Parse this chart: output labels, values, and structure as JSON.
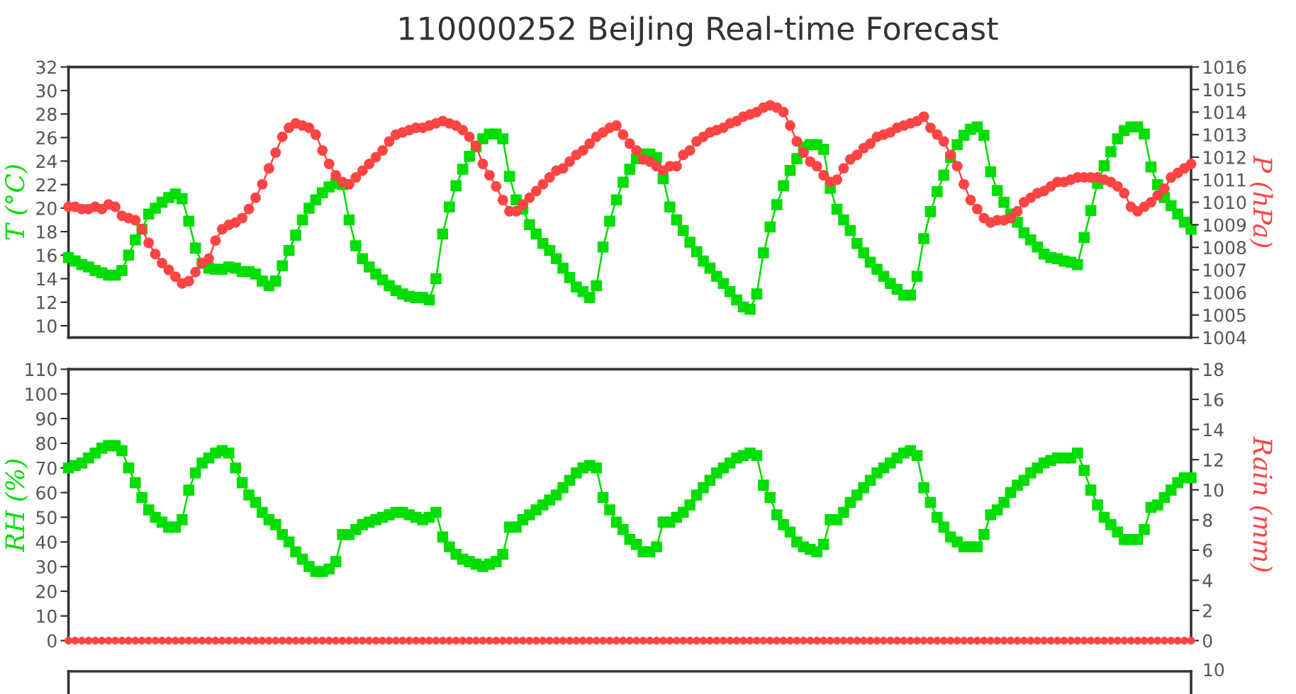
{
  "chart_data": [
    {
      "type": "line",
      "title": "110000252 BeiJing Real-time Forecast",
      "ylabel": "T (°C)",
      "y2label": "P (hPa)",
      "tick_labels": "y",
      "categories": [
        null,
        null,
        null,
        null,
        null,
        null,
        null,
        null,
        null,
        null,
        null,
        null,
        null,
        null,
        null,
        null,
        null,
        null,
        null,
        null,
        null,
        null,
        null,
        null,
        null,
        null,
        null,
        null,
        null,
        null,
        null,
        null,
        null,
        null,
        null,
        null,
        null,
        null,
        null,
        null,
        null,
        null,
        null,
        null,
        null,
        null,
        null,
        null,
        null,
        null,
        null,
        null,
        null,
        null,
        null,
        null,
        null,
        null,
        null,
        null,
        null,
        null,
        null,
        null,
        null,
        null,
        null,
        null,
        null,
        null,
        null,
        null,
        null,
        null,
        null,
        null,
        null,
        null,
        null,
        null,
        null,
        null,
        null,
        null,
        null,
        null,
        null,
        null,
        null,
        null,
        null,
        null,
        null,
        null,
        null,
        null,
        null,
        null,
        null,
        null,
        null,
        null,
        null,
        null,
        null,
        null,
        null,
        null,
        null,
        null,
        null,
        null,
        null,
        null,
        null,
        null,
        null,
        null,
        null,
        null,
        null,
        null,
        null,
        null,
        null,
        null,
        null,
        null,
        null,
        null,
        null,
        null,
        null,
        null,
        null,
        null,
        null,
        null,
        null,
        null,
        null,
        null,
        null,
        null,
        null,
        null,
        null,
        null,
        null,
        null,
        null,
        null,
        null,
        null,
        null,
        null,
        null,
        null,
        null,
        null,
        null,
        null,
        null,
        null,
        null,
        null,
        null,
        null,
        null
      ],
      "ylim": [
        9,
        32
      ],
      "yticks": [
        10,
        12,
        14,
        16,
        18,
        20,
        22,
        24,
        26,
        28,
        30,
        32
      ],
      "y2lim": [
        1004,
        1016
      ],
      "y2ticks": [
        1004,
        1005,
        1006,
        1007,
        1008,
        1009,
        1010,
        1011,
        1012,
        1013,
        1014,
        1015,
        1016
      ],
      "series": [
        {
          "color": "#00dd00",
          "marker": "square",
          "values": [
            15.8,
            15.5,
            15.2,
            15.0,
            14.7,
            14.5,
            14.3,
            14.3,
            14.7,
            16.0,
            17.3,
            18.2,
            19.5,
            20.0,
            20.5,
            20.9,
            21.2,
            20.8,
            18.9,
            16.6,
            15.3,
            14.9,
            14.8,
            14.8,
            15.0,
            14.9,
            14.6,
            14.6,
            14.4,
            13.8,
            13.4,
            13.8,
            15.1,
            16.4,
            17.7,
            19.0,
            20.0,
            20.7,
            21.3,
            21.8,
            22.1,
            22.0,
            19.0,
            16.8,
            15.7,
            15.0,
            14.4,
            13.9,
            13.4,
            13.0,
            12.7,
            12.5,
            12.4,
            12.4,
            12.2,
            14.0,
            17.8,
            20.1,
            21.9,
            23.3,
            24.4,
            25.2,
            25.9,
            26.3,
            26.3,
            25.9,
            22.7,
            20.7,
            19.9,
            18.6,
            17.8,
            17.0,
            16.4,
            15.7,
            14.9,
            14.1,
            13.3,
            12.9,
            12.4,
            13.4,
            16.7,
            18.9,
            20.7,
            22.2,
            23.3,
            24.2,
            24.6,
            24.6,
            24.3,
            22.5,
            20.1,
            19.0,
            18.1,
            17.1,
            16.3,
            15.5,
            14.9,
            14.2,
            13.6,
            12.9,
            12.2,
            11.6,
            11.4,
            12.7,
            16.2,
            18.4,
            20.3,
            21.9,
            23.2,
            24.2,
            25.2,
            25.4,
            25.4,
            25.0,
            21.7,
            19.9,
            19.0,
            18.1,
            17.0,
            16.2,
            15.4,
            14.8,
            14.2,
            13.6,
            13.1,
            12.6,
            12.6,
            14.2,
            17.4,
            19.7,
            21.4,
            22.8,
            24.3,
            25.4,
            26.2,
            26.7,
            26.9,
            26.2,
            23.1,
            21.5,
            20.5,
            19.5,
            18.8,
            17.9,
            17.3,
            16.7,
            16.1,
            15.8,
            15.7,
            15.5,
            15.4,
            15.2,
            17.5,
            19.8,
            22.1,
            23.6,
            24.8,
            25.9,
            26.6,
            26.9,
            26.9,
            26.3,
            23.5,
            22.0,
            20.9,
            20.2,
            19.5,
            18.8,
            18.2
          ]
        },
        {
          "color": "#ff4444",
          "marker": "circle",
          "axis": "y2",
          "values": [
            1009.8,
            1009.8,
            1009.7,
            1009.7,
            1009.8,
            1009.7,
            1009.9,
            1009.8,
            1009.4,
            1009.3,
            1009.2,
            1008.8,
            1008.2,
            1007.7,
            1007.3,
            1007.0,
            1006.7,
            1006.4,
            1006.5,
            1006.9,
            1007.3,
            1007.5,
            1008.3,
            1008.8,
            1009.0,
            1009.1,
            1009.3,
            1009.7,
            1010.2,
            1010.8,
            1011.5,
            1012.2,
            1012.9,
            1013.3,
            1013.5,
            1013.4,
            1013.3,
            1013.0,
            1012.3,
            1011.7,
            1011.2,
            1010.9,
            1010.8,
            1011.1,
            1011.4,
            1011.7,
            1012.0,
            1012.3,
            1012.7,
            1013.0,
            1013.1,
            1013.2,
            1013.3,
            1013.3,
            1013.4,
            1013.5,
            1013.6,
            1013.5,
            1013.4,
            1013.2,
            1012.9,
            1012.5,
            1011.7,
            1011.2,
            1010.7,
            1010.1,
            1009.6,
            1009.6,
            1009.9,
            1010.2,
            1010.5,
            1010.8,
            1011.1,
            1011.4,
            1011.5,
            1011.8,
            1012.1,
            1012.3,
            1012.6,
            1012.9,
            1013.1,
            1013.3,
            1013.4,
            1013.0,
            1012.6,
            1012.3,
            1011.9,
            1011.8,
            1011.6,
            1011.4,
            1011.6,
            1011.6,
            1012.1,
            1012.3,
            1012.7,
            1012.9,
            1013.1,
            1013.2,
            1013.3,
            1013.5,
            1013.6,
            1013.8,
            1013.9,
            1014.0,
            1014.2,
            1014.3,
            1014.2,
            1014.0,
            1013.4,
            1012.7,
            1012.2,
            1011.8,
            1011.6,
            1011.2,
            1010.9,
            1011.0,
            1011.5,
            1011.9,
            1012.1,
            1012.4,
            1012.6,
            1012.9,
            1013.0,
            1013.1,
            1013.3,
            1013.4,
            1013.5,
            1013.6,
            1013.8,
            1013.3,
            1013.0,
            1012.7,
            1012.1,
            1011.6,
            1010.8,
            1010.1,
            1009.7,
            1009.3,
            1009.1,
            1009.2,
            1009.2,
            1009.3,
            1009.6,
            1010.0,
            1010.2,
            1010.4,
            1010.5,
            1010.7,
            1010.9,
            1010.9,
            1011.0,
            1011.1,
            1011.1,
            1011.1,
            1011.1,
            1011.0,
            1010.9,
            1010.7,
            1010.4,
            1009.8,
            1009.6,
            1009.8,
            1010.0,
            1010.3,
            1010.6,
            1011.1,
            1011.3,
            1011.5,
            1011.7
          ]
        }
      ]
    },
    {
      "type": "line",
      "ylabel": "RH (%)",
      "y2label": "Rain (mm)",
      "tick_labels": "y",
      "categories": [
        null,
        null,
        null,
        null,
        null,
        null,
        null,
        null,
        null,
        null,
        null,
        null,
        null,
        null,
        null,
        null,
        null,
        null,
        null,
        null,
        null,
        null,
        null,
        null,
        null,
        null,
        null,
        null,
        null,
        null,
        null,
        null,
        null,
        null,
        null,
        null,
        null,
        null,
        null,
        null,
        null,
        null,
        null,
        null,
        null,
        null,
        null,
        null,
        null,
        null,
        null,
        null,
        null,
        null,
        null,
        null,
        null,
        null,
        null,
        null,
        null,
        null,
        null,
        null,
        null,
        null,
        null,
        null,
        null,
        null,
        null,
        null,
        null,
        null,
        null,
        null,
        null,
        null,
        null,
        null,
        null,
        null,
        null,
        null,
        null,
        null,
        null,
        null,
        null,
        null,
        null,
        null,
        null,
        null,
        null,
        null,
        null,
        null,
        null,
        null,
        null,
        null,
        null,
        null,
        null,
        null,
        null,
        null,
        null,
        null,
        null,
        null,
        null,
        null,
        null,
        null,
        null,
        null,
        null,
        null,
        null,
        null,
        null,
        null,
        null,
        null,
        null,
        null,
        null,
        null,
        null,
        null,
        null,
        null,
        null,
        null,
        null,
        null,
        null,
        null,
        null,
        null,
        null,
        null,
        null,
        null,
        null,
        null,
        null,
        null,
        null,
        null,
        null,
        null,
        null,
        null,
        null,
        null,
        null,
        null,
        null,
        null,
        null,
        null,
        null,
        null,
        null,
        null,
        null
      ],
      "ylim": [
        0,
        110
      ],
      "yticks": [
        0,
        10,
        20,
        30,
        40,
        50,
        60,
        70,
        80,
        90,
        100,
        110
      ],
      "y2lim": [
        0,
        18
      ],
      "y2ticks": [
        0,
        2,
        4,
        6,
        8,
        10,
        12,
        14,
        16,
        18
      ],
      "series": [
        {
          "color": "#00dd00",
          "marker": "square",
          "values": [
            70,
            71,
            72,
            74,
            76,
            78,
            79,
            79,
            77,
            70,
            64,
            58,
            53,
            50,
            48,
            46,
            46,
            49,
            61,
            68,
            72,
            74,
            76,
            77,
            76,
            70,
            64,
            59,
            56,
            52,
            49,
            47,
            43,
            40,
            36,
            33,
            30,
            28,
            28,
            29,
            32,
            43,
            43,
            45,
            47,
            48,
            49,
            50,
            51,
            52,
            52,
            51,
            50,
            49,
            50,
            52,
            42,
            38,
            35,
            33,
            32,
            31,
            30,
            31,
            32,
            35,
            46,
            46,
            49,
            51,
            53,
            55,
            57,
            59,
            62,
            65,
            68,
            70,
            71,
            70,
            58,
            53,
            48,
            45,
            41,
            39,
            36,
            36,
            38,
            48,
            48,
            50,
            52,
            55,
            59,
            62,
            65,
            68,
            70,
            72,
            74,
            75,
            76,
            75,
            63,
            58,
            51,
            47,
            44,
            40,
            38,
            37,
            36,
            39,
            49,
            49,
            52,
            56,
            59,
            62,
            65,
            68,
            70,
            72,
            74,
            76,
            77,
            75,
            62,
            56,
            50,
            46,
            42,
            40,
            38,
            38,
            38,
            43,
            51,
            53,
            56,
            60,
            63,
            65,
            68,
            70,
            72,
            73,
            74,
            74,
            74,
            76,
            69,
            61,
            55,
            50,
            47,
            44,
            41,
            41,
            41,
            45,
            54,
            55,
            58,
            61,
            64,
            66,
            66
          ]
        },
        {
          "color": "#ff4444",
          "marker": "circle",
          "axis": "y2",
          "values": [
            0,
            0,
            0,
            0,
            0,
            0,
            0,
            0,
            0,
            0,
            0,
            0,
            0,
            0,
            0,
            0,
            0,
            0,
            0,
            0,
            0,
            0,
            0,
            0,
            0,
            0,
            0,
            0,
            0,
            0,
            0,
            0,
            0,
            0,
            0,
            0,
            0,
            0,
            0,
            0,
            0,
            0,
            0,
            0,
            0,
            0,
            0,
            0,
            0,
            0,
            0,
            0,
            0,
            0,
            0,
            0,
            0,
            0,
            0,
            0,
            0,
            0,
            0,
            0,
            0,
            0,
            0,
            0,
            0,
            0,
            0,
            0,
            0,
            0,
            0,
            0,
            0,
            0,
            0,
            0,
            0,
            0,
            0,
            0,
            0,
            0,
            0,
            0,
            0,
            0,
            0,
            0,
            0,
            0,
            0,
            0,
            0,
            0,
            0,
            0,
            0,
            0,
            0,
            0,
            0,
            0,
            0,
            0,
            0,
            0,
            0,
            0,
            0,
            0,
            0,
            0,
            0,
            0,
            0,
            0,
            0,
            0,
            0,
            0,
            0,
            0,
            0,
            0,
            0,
            0,
            0,
            0,
            0,
            0,
            0,
            0,
            0,
            0,
            0,
            0,
            0,
            0,
            0,
            0,
            0,
            0,
            0,
            0,
            0,
            0,
            0,
            0,
            0,
            0,
            0,
            0,
            0,
            0,
            0,
            0,
            0,
            0,
            0,
            0,
            0,
            0,
            0,
            0,
            0
          ]
        }
      ]
    },
    {
      "type": "other",
      "annotations": [
        "10"
      ]
    }
  ]
}
